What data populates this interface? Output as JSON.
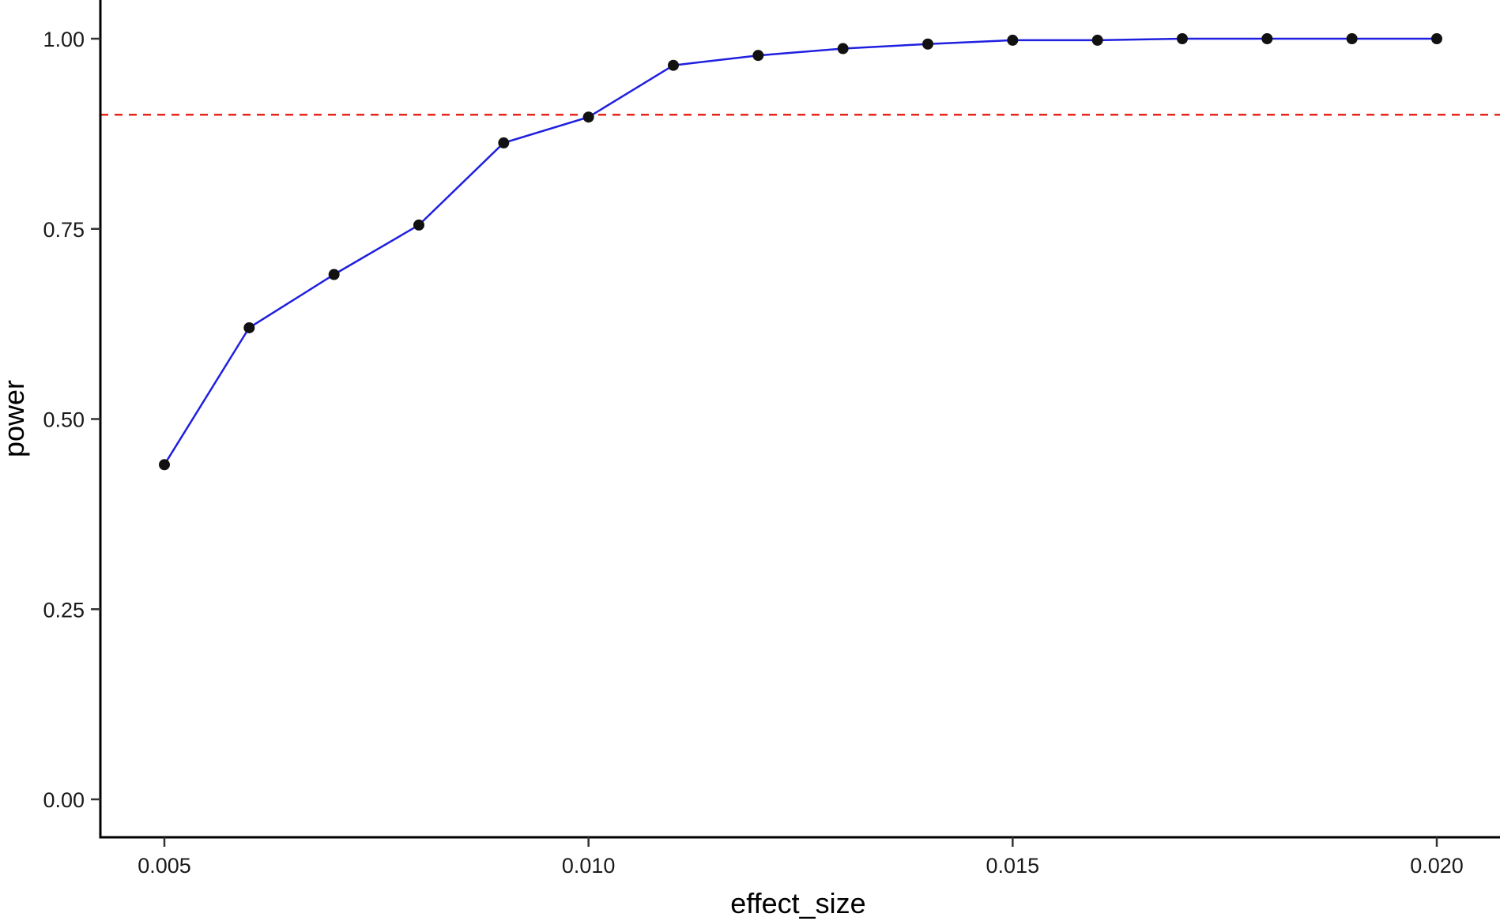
{
  "chart_data": {
    "type": "line",
    "title": "",
    "xlabel": "effect_size",
    "ylabel": "power",
    "xlim": [
      0.0046,
      0.0205
    ],
    "ylim": [
      -0.05,
      1.05
    ],
    "x_ticks": [
      0.005,
      0.01,
      0.015,
      0.02
    ],
    "x_tick_labels": [
      "0.005",
      "0.010",
      "0.015",
      "0.020"
    ],
    "y_ticks": [
      0,
      0.25,
      0.5,
      0.75,
      1
    ],
    "y_tick_labels": [
      "0.00",
      "0.25",
      "0.50",
      "0.75",
      "1.00"
    ],
    "grid": false,
    "legend": "none",
    "series": [
      {
        "x": [
          0.005,
          0.006,
          0.007,
          0.008,
          0.009,
          0.01,
          0.011,
          0.012,
          0.013,
          0.014,
          0.015,
          0.016,
          0.017,
          0.018,
          0.019,
          0.02
        ],
        "y": [
          0.44,
          0.62,
          0.69,
          0.755,
          0.863,
          0.897,
          0.965,
          0.978,
          0.987,
          0.993,
          0.998,
          0.998,
          1.0,
          1.0,
          1.0,
          1.0
        ],
        "line_color": "#1f1fe0",
        "point_color": "#111111"
      }
    ],
    "reference_line": {
      "orientation": "horizontal",
      "y": 0.9,
      "style": "dashed",
      "color": "#e8261c"
    }
  }
}
